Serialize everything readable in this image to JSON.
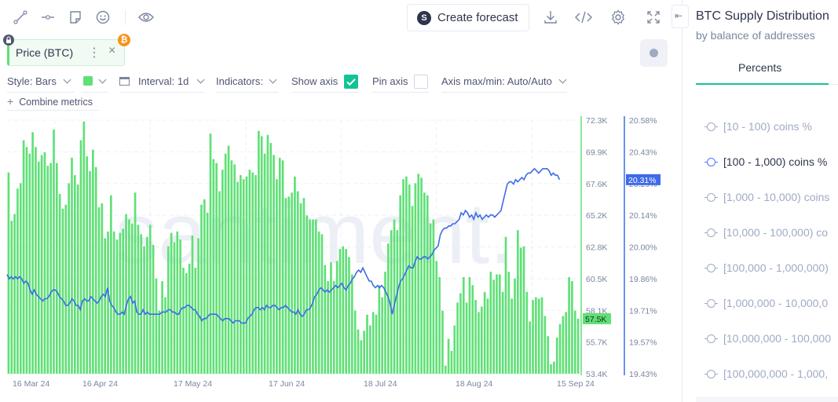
{
  "toolbar": {
    "create_forecast_label": "Create forecast",
    "icons": [
      "line-tool-icon",
      "horizontal-line-icon",
      "sticky-note-icon",
      "emoji-icon",
      "eye-icon",
      "forecast-icon",
      "download-icon",
      "embed-code-icon",
      "settings-icon",
      "fullscreen-icon"
    ]
  },
  "metric_chip": {
    "label": "Price (BTC)",
    "menu_glyph": "⋮",
    "close_glyph": "×",
    "coin_glyph": "₿",
    "color": "#5fe076"
  },
  "settings": {
    "style_label": "Style: Bars",
    "interval_label": "Interval: 1d",
    "indicators_label": "Indicators:",
    "show_axis_label": "Show axis",
    "show_axis_checked": true,
    "pin_axis_label": "Pin axis",
    "pin_axis_checked": false,
    "axis_maxmin_label": "Axis max/min: Auto/Auto",
    "combine_label": "Combine metrics",
    "series_color": "#5fe076"
  },
  "watermark": "santiment.",
  "axes": {
    "price_ticks": [
      "72.3K",
      "69.9K",
      "67.6K",
      "65.2K",
      "62.8K",
      "60.5K",
      "58.1K",
      "55.7K",
      "53.4K"
    ],
    "price_current": "57.5K",
    "supply_ticks": [
      "20.58%",
      "20.43%",
      "20.29%",
      "20.14%",
      "20.00%",
      "19.86%",
      "19.71%",
      "19.57%",
      "19.43%"
    ],
    "supply_current": "20.31%",
    "dates": [
      "16 Mar 24",
      "16 Apr 24",
      "17 May 24",
      "17 Jun 24",
      "18 Jul 24",
      "18 Aug 24",
      "15 Sep 24"
    ]
  },
  "chart_data": {
    "type": "bar",
    "series": [
      {
        "name": "Price (BTC)",
        "type": "bar",
        "color": "#5fe076",
        "x_start": "16 Mar 24",
        "x_end": "15 Sep 24",
        "ylim": [
          53.4,
          72.3
        ],
        "unit": "K USD",
        "values": [
          68.4,
          64.8,
          65.3,
          67.2,
          67.6,
          70.8,
          70.3,
          69.8,
          71.4,
          70.3,
          69.2,
          69.7,
          69.9,
          68.9,
          69.1,
          71.6,
          69.1,
          66.8,
          65.7,
          66.0,
          67.6,
          69.5,
          68.2,
          67.5,
          70.8,
          72.2,
          69.6,
          68.5,
          70.1,
          68.8,
          65.8,
          66.1,
          63.5,
          64.0,
          66.7,
          64.0,
          63.4,
          63.9,
          64.2,
          65.3,
          64.9,
          64.6,
          66.9,
          64.5,
          63.8,
          62.9,
          63.6,
          64.5,
          63.0,
          60.5,
          58.1,
          60.3,
          59.1,
          62.9,
          63.9,
          63.2,
          64.0,
          63.4,
          61.3,
          60.9,
          61.6,
          63.7,
          61.3,
          63.5,
          66.0,
          66.4,
          65.4,
          71.3,
          69.4,
          69.1,
          67.0,
          68.6,
          69.8,
          70.4,
          69.3,
          69.0,
          67.7,
          68.2,
          67.9,
          68.1,
          68.6,
          68.4,
          68.2,
          71.5,
          71.1,
          69.8,
          71.2,
          70.6,
          69.7,
          67.9,
          69.5,
          69.3,
          66.5,
          66.6,
          66.9,
          68.1,
          67.0,
          66.1,
          66.5,
          65.2,
          64.9,
          64.9,
          64.9,
          64.0,
          63.8,
          61.5,
          60.3,
          61.7,
          60.3,
          61.8,
          62.7,
          62.9,
          62.7,
          62.1,
          60.8,
          58.1,
          56.7,
          55.9,
          56.6,
          57.8,
          57.0,
          58.0,
          57.8,
          60.0,
          59.1,
          61.0,
          63.1,
          64.1,
          64.9,
          64.1,
          66.7,
          67.9,
          68.1,
          67.5,
          65.9,
          67.6,
          68.3,
          68.0,
          66.9,
          66.7,
          64.6,
          64.9,
          61.8,
          60.6,
          58.1,
          54.0,
          56.0,
          55.1,
          57.0,
          58.7,
          59.4,
          60.6,
          58.7,
          60.6,
          60.0,
          58.9,
          58.0,
          58.4,
          59.5,
          59.0,
          61.0,
          60.4,
          60.8,
          60.8,
          59.5,
          63.6,
          61.0,
          59.0,
          60.5,
          64.1,
          62.8,
          62.9,
          59.5,
          57.3,
          58.9,
          59.1,
          59.0,
          59.1,
          57.7,
          56.2,
          54.1,
          54.3,
          56.1,
          57.1,
          57.7,
          58.0,
          60.6,
          60.3,
          58.1,
          57.5
        ]
      },
      {
        "name": "[100 - 1,000) coins %",
        "type": "line",
        "color": "#3f6be8",
        "x_start": "16 Mar 24",
        "x_end": "15 Sep 24",
        "ylim": [
          19.43,
          20.58
        ],
        "unit": "%",
        "values": [
          19.88,
          19.86,
          19.87,
          19.86,
          19.87,
          19.86,
          19.87,
          19.86,
          19.84,
          19.85,
          19.84,
          19.81,
          19.79,
          19.81,
          19.79,
          19.78,
          19.77,
          19.76,
          19.77,
          19.77,
          19.78,
          19.8,
          19.81,
          19.81,
          19.8,
          19.78,
          19.77,
          19.76,
          19.74,
          19.74,
          19.75,
          19.77,
          19.76,
          19.74,
          19.74,
          19.72,
          19.76,
          19.77,
          19.76,
          19.76,
          19.78,
          19.77,
          19.76,
          19.75,
          19.76,
          19.78,
          19.79,
          19.78,
          19.82,
          19.76,
          19.74,
          19.73,
          19.71,
          19.7,
          19.7,
          19.71,
          19.7,
          19.74,
          19.77,
          19.78,
          19.75,
          19.76,
          19.71,
          19.7,
          19.7,
          19.72,
          19.7,
          19.71,
          19.7,
          19.7,
          19.7,
          19.7,
          19.7,
          19.7,
          19.71,
          19.71,
          19.71,
          19.72,
          19.72,
          19.71,
          19.71,
          19.7,
          19.7,
          19.72,
          19.73,
          19.73,
          19.74,
          19.74,
          19.73,
          19.72,
          19.72,
          19.7,
          19.69,
          19.67,
          19.68,
          19.68,
          19.69,
          19.7,
          19.7,
          19.7,
          19.7,
          19.69,
          19.68,
          19.67,
          19.68,
          19.68,
          19.68,
          19.67,
          19.66,
          19.67,
          19.67,
          19.67,
          19.66,
          19.66,
          19.66,
          19.68,
          19.69,
          19.7,
          19.72,
          19.73,
          19.73,
          19.72,
          19.73,
          19.72,
          19.74,
          19.73,
          19.73,
          19.74,
          19.74,
          19.73,
          19.72,
          19.73,
          19.73,
          19.74,
          19.73,
          19.72,
          19.71,
          19.71,
          19.7,
          19.72,
          19.7,
          19.69,
          19.7,
          19.72,
          19.72,
          19.73,
          19.75,
          19.78,
          19.79,
          19.81,
          19.82,
          19.81,
          19.8,
          19.81,
          19.8,
          19.81,
          19.82,
          19.83,
          19.82,
          19.83,
          19.84,
          19.82,
          19.81,
          19.83,
          19.84,
          19.86,
          19.87,
          19.89,
          19.9,
          19.89,
          19.91,
          19.89,
          19.87,
          19.85,
          19.85,
          19.83,
          19.82,
          19.83,
          19.82,
          19.83,
          19.82,
          19.8,
          19.78,
          19.75,
          19.7,
          19.74,
          19.78,
          19.82,
          19.85,
          19.86,
          19.88,
          19.9,
          19.92,
          19.91,
          19.91,
          19.94,
          19.96,
          19.95,
          19.95,
          19.96,
          19.96,
          19.95,
          19.96,
          19.97,
          19.99,
          20.0,
          20.01,
          20.06,
          20.08,
          20.09,
          20.09,
          20.1,
          20.1,
          20.11,
          20.11,
          20.12,
          20.13,
          20.16,
          20.15,
          20.17,
          20.16,
          20.14,
          20.15,
          20.13,
          20.16,
          20.14,
          20.15,
          20.13,
          20.14,
          20.15,
          20.14,
          20.15,
          20.15,
          20.14,
          20.15,
          20.16,
          20.17,
          20.21,
          20.25,
          20.29,
          20.3,
          20.3,
          20.29,
          20.31,
          20.3,
          20.31,
          20.32,
          20.31,
          20.33,
          20.34,
          20.34,
          20.35,
          20.36,
          20.35,
          20.34,
          20.35,
          20.36,
          20.36,
          20.36,
          20.35,
          20.33,
          20.34,
          20.33,
          20.33,
          20.31
        ]
      }
    ]
  },
  "right_panel": {
    "title": "BTC Supply Distribution",
    "subtitle": "by balance of addresses",
    "tab_label": "Percents",
    "items": [
      {
        "label": "[10 - 100) coins %",
        "active": false
      },
      {
        "label": "[100 - 1,000) coins %",
        "active": true
      },
      {
        "label": "[1,000 - 10,000) coins",
        "active": false
      },
      {
        "label": "[10,000 - 100,000) co",
        "active": false
      },
      {
        "label": "[100,000 - 1,000,000)",
        "active": false
      },
      {
        "label": "[1,000,000 - 10,000,0",
        "active": false
      },
      {
        "label": "[10,000,000 - 100,000",
        "active": false
      },
      {
        "label": "[100,000,000 - 1,000,",
        "active": false
      }
    ],
    "collapse_glyph": "⇤"
  }
}
